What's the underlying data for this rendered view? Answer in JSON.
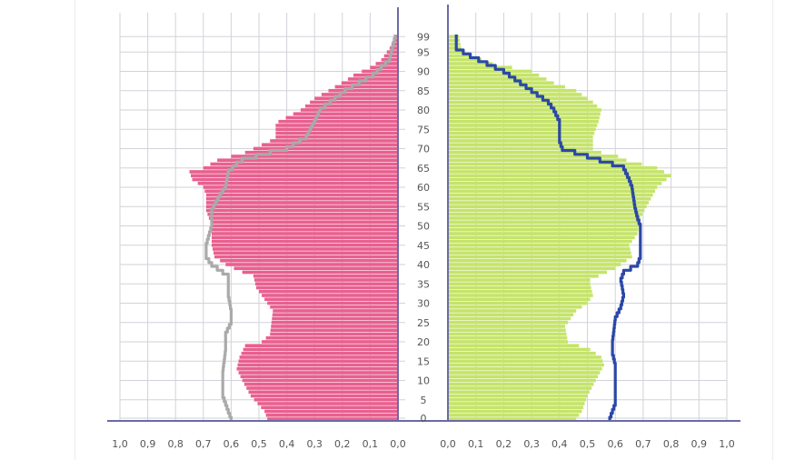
{
  "chart_data": [
    {
      "type": "bar",
      "orientation": "horizontal",
      "direction": "leftward",
      "xlim": [
        0,
        1.0
      ],
      "x_ticks": [
        "1,0",
        "0,9",
        "0,8",
        "0,7",
        "0,6",
        "0,5",
        "0,4",
        "0,3",
        "0,2",
        "0,1",
        "0,0"
      ],
      "grid": true,
      "bar_color": "#e8608f",
      "line_color": "#aaaaaa",
      "bars_by_age": [
        [
          0,
          0.47
        ],
        [
          2,
          0.48
        ],
        [
          6,
          0.53
        ],
        [
          10,
          0.56
        ],
        [
          13,
          0.58
        ],
        [
          16,
          0.57
        ],
        [
          19,
          0.55
        ],
        [
          20,
          0.49
        ],
        [
          22,
          0.46
        ],
        [
          28,
          0.45
        ],
        [
          31,
          0.48
        ],
        [
          34,
          0.51
        ],
        [
          37,
          0.52
        ],
        [
          38,
          0.56
        ],
        [
          40,
          0.62
        ],
        [
          42,
          0.66
        ],
        [
          45,
          0.67
        ],
        [
          50,
          0.67
        ],
        [
          54,
          0.69
        ],
        [
          58,
          0.69
        ],
        [
          60,
          0.7
        ],
        [
          62,
          0.74
        ],
        [
          64,
          0.75
        ],
        [
          65,
          0.7
        ],
        [
          67,
          0.65
        ],
        [
          69,
          0.55
        ],
        [
          70,
          0.52
        ],
        [
          72,
          0.46
        ],
        [
          73,
          0.44
        ],
        [
          76,
          0.44
        ],
        [
          77,
          0.43
        ],
        [
          80,
          0.35
        ],
        [
          83,
          0.3
        ],
        [
          85,
          0.25
        ],
        [
          88,
          0.18
        ],
        [
          89,
          0.16
        ],
        [
          91,
          0.1
        ],
        [
          93,
          0.06
        ],
        [
          96,
          0.03
        ],
        [
          99,
          0.01
        ]
      ],
      "line_by_age": [
        [
          0,
          0.6
        ],
        [
          2,
          0.61
        ],
        [
          6,
          0.63
        ],
        [
          12,
          0.63
        ],
        [
          18,
          0.62
        ],
        [
          22,
          0.62
        ],
        [
          25,
          0.6
        ],
        [
          28,
          0.6
        ],
        [
          32,
          0.61
        ],
        [
          37,
          0.61
        ],
        [
          39,
          0.65
        ],
        [
          40,
          0.67
        ],
        [
          42,
          0.69
        ],
        [
          45,
          0.69
        ],
        [
          50,
          0.67
        ],
        [
          54,
          0.67
        ],
        [
          58,
          0.64
        ],
        [
          60,
          0.62
        ],
        [
          64,
          0.61
        ],
        [
          66,
          0.58
        ],
        [
          67,
          0.56
        ],
        [
          69,
          0.46
        ],
        [
          70,
          0.4
        ],
        [
          73,
          0.33
        ],
        [
          77,
          0.3
        ],
        [
          80,
          0.28
        ],
        [
          85,
          0.19
        ],
        [
          89,
          0.09
        ],
        [
          93,
          0.03
        ],
        [
          99,
          0.01
        ]
      ]
    },
    {
      "type": "bar",
      "orientation": "horizontal",
      "direction": "rightward",
      "xlim": [
        0,
        1.0
      ],
      "x_ticks": [
        "0,0",
        "0,1",
        "0,2",
        "0,3",
        "0,4",
        "0,5",
        "0,6",
        "0,7",
        "0,8",
        "0,9",
        "1,0"
      ],
      "y_ticks": [
        "0",
        "5",
        "10",
        "15",
        "20",
        "25",
        "30",
        "35",
        "40",
        "45",
        "50",
        "55",
        "60",
        "65",
        "70",
        "75",
        "80",
        "85",
        "90",
        "95",
        "99"
      ],
      "grid": true,
      "bar_color": "#c5e46a",
      "line_color": "#2b48a6",
      "bars_by_age": [
        [
          0,
          0.46
        ],
        [
          2,
          0.48
        ],
        [
          6,
          0.5
        ],
        [
          10,
          0.53
        ],
        [
          14,
          0.56
        ],
        [
          16,
          0.55
        ],
        [
          18,
          0.51
        ],
        [
          20,
          0.43
        ],
        [
          24,
          0.42
        ],
        [
          28,
          0.46
        ],
        [
          30,
          0.5
        ],
        [
          32,
          0.52
        ],
        [
          35,
          0.51
        ],
        [
          36,
          0.51
        ],
        [
          38,
          0.57
        ],
        [
          39,
          0.6
        ],
        [
          42,
          0.66
        ],
        [
          45,
          0.65
        ],
        [
          48,
          0.68
        ],
        [
          52,
          0.69
        ],
        [
          56,
          0.72
        ],
        [
          60,
          0.75
        ],
        [
          63,
          0.8
        ],
        [
          65,
          0.75
        ],
        [
          67,
          0.64
        ],
        [
          68,
          0.61
        ],
        [
          69,
          0.55
        ],
        [
          70,
          0.52
        ],
        [
          73,
          0.52
        ],
        [
          77,
          0.54
        ],
        [
          80,
          0.55
        ],
        [
          82,
          0.52
        ],
        [
          85,
          0.46
        ],
        [
          87,
          0.38
        ],
        [
          90,
          0.3
        ],
        [
          92,
          0.16
        ],
        [
          94,
          0.08
        ],
        [
          95,
          0.05
        ],
        [
          99,
          0.04
        ]
      ],
      "line_by_age": [
        [
          0,
          0.58
        ],
        [
          2,
          0.59
        ],
        [
          4,
          0.6
        ],
        [
          10,
          0.6
        ],
        [
          14,
          0.6
        ],
        [
          17,
          0.59
        ],
        [
          20,
          0.59
        ],
        [
          26,
          0.6
        ],
        [
          29,
          0.62
        ],
        [
          32,
          0.63
        ],
        [
          36,
          0.62
        ],
        [
          38,
          0.63
        ],
        [
          40,
          0.68
        ],
        [
          42,
          0.69
        ],
        [
          45,
          0.69
        ],
        [
          50,
          0.69
        ],
        [
          52,
          0.68
        ],
        [
          55,
          0.67
        ],
        [
          60,
          0.66
        ],
        [
          62,
          0.65
        ],
        [
          65,
          0.63
        ],
        [
          66,
          0.59
        ],
        [
          68,
          0.5
        ],
        [
          70,
          0.41
        ],
        [
          72,
          0.4
        ],
        [
          77,
          0.4
        ],
        [
          80,
          0.38
        ],
        [
          82,
          0.36
        ],
        [
          85,
          0.3
        ],
        [
          87,
          0.26
        ],
        [
          90,
          0.2
        ],
        [
          92,
          0.14
        ],
        [
          94,
          0.08
        ],
        [
          96,
          0.03
        ],
        [
          99,
          0.03
        ]
      ]
    }
  ],
  "colors": {
    "axis": "#6b6aa8",
    "grid": "#d2d2da"
  }
}
